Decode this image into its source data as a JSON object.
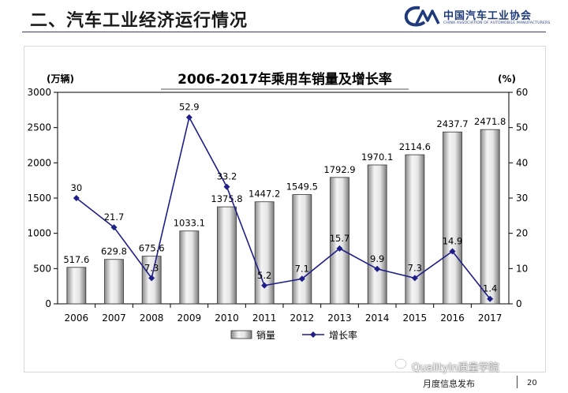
{
  "header": {
    "title": "二、汽车工业经济运行情况",
    "logo_cn": "中国汽车工业协会",
    "logo_en": "CHINA ASSOCIATION OF AUTOMOBILE MANUFACTURERS"
  },
  "footer": {
    "label": "月度信息发布",
    "page": "20",
    "watermark": "QualityIn质量学院"
  },
  "colors": {
    "header_rule": "#3b3b6d",
    "bar_fill": "#c8c8c8",
    "line": "#1f1f8a",
    "logo": "#1f3a7a"
  },
  "chart_data": {
    "type": "bar",
    "title": "2006-2017年乘用车销量及增长率",
    "categories": [
      "2006",
      "2007",
      "2008",
      "2009",
      "2010",
      "2011",
      "2012",
      "2013",
      "2014",
      "2015",
      "2016",
      "2017"
    ],
    "series": [
      {
        "name": "销量",
        "type": "bar",
        "axis": "left",
        "values": [
          517.6,
          629.8,
          675.6,
          1033.1,
          1375.8,
          1447.2,
          1549.5,
          1792.9,
          1970.1,
          2114.6,
          2437.7,
          2471.8
        ],
        "labels": [
          "517.6",
          "629.8",
          "675.6",
          "1033.1",
          "1375.8",
          "1447.2",
          "1549.5",
          "1792.9",
          "1970.1",
          "2114.6",
          "2437.7",
          "2471.8"
        ]
      },
      {
        "name": "增长率",
        "type": "line",
        "axis": "right",
        "values": [
          30,
          21.7,
          7.3,
          52.9,
          33.2,
          5.2,
          7.1,
          15.7,
          9.9,
          7.3,
          14.9,
          1.4
        ],
        "labels": [
          "30",
          "21.7",
          "7.3",
          "52.9",
          "33.2",
          "5.2",
          "7.1",
          "15.7",
          "9.9",
          "7.3",
          "14.9",
          "1.4"
        ]
      }
    ],
    "ylabel_left": "(万辆)",
    "ylabel_right": "(%)",
    "ylim_left": [
      0,
      3000
    ],
    "yticks_left": [
      0,
      500,
      1000,
      1500,
      2000,
      2500,
      3000
    ],
    "ylim_right": [
      0,
      60
    ],
    "yticks_right": [
      0,
      10,
      20,
      30,
      40,
      50,
      60
    ],
    "grid": false,
    "legend_position": "bottom-center"
  }
}
